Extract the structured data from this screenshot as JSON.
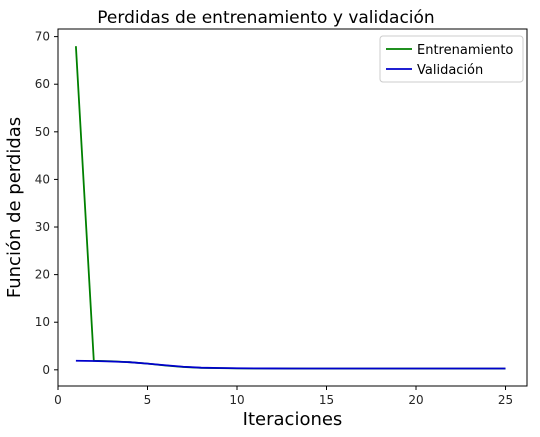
{
  "chart_data": {
    "type": "line",
    "title": "Perdidas de entrenamiento y validación",
    "xlabel": "Iteraciones",
    "ylabel": "Función de perdidas",
    "xlim": [
      0,
      26.2
    ],
    "ylim": [
      -3.4,
      71.6
    ],
    "xticks": [
      0,
      5,
      10,
      15,
      20,
      25
    ],
    "yticks": [
      0,
      10,
      20,
      30,
      40,
      50,
      60,
      70
    ],
    "grid": false,
    "legend_position": "top-right",
    "series": [
      {
        "name": "Entrenamiento",
        "color": "#008000",
        "x": [
          1,
          2,
          3,
          4,
          5,
          6,
          7,
          8,
          9,
          10,
          11,
          12,
          13,
          14,
          15,
          16,
          17,
          18,
          19,
          20,
          21,
          22,
          23,
          24,
          25
        ],
        "y": [
          68.0,
          1.9,
          1.8,
          1.6,
          1.3,
          0.9,
          0.6,
          0.4,
          0.35,
          0.3,
          0.28,
          0.27,
          0.26,
          0.25,
          0.25,
          0.25,
          0.25,
          0.25,
          0.25,
          0.25,
          0.25,
          0.25,
          0.25,
          0.25,
          0.25
        ]
      },
      {
        "name": "Validación",
        "color": "#0000cc",
        "x": [
          1,
          2,
          3,
          4,
          5,
          6,
          7,
          8,
          9,
          10,
          11,
          12,
          13,
          14,
          15,
          16,
          17,
          18,
          19,
          20,
          21,
          22,
          23,
          24,
          25
        ],
        "y": [
          1.9,
          1.85,
          1.75,
          1.6,
          1.3,
          0.95,
          0.65,
          0.45,
          0.38,
          0.33,
          0.3,
          0.29,
          0.28,
          0.28,
          0.27,
          0.27,
          0.27,
          0.27,
          0.27,
          0.27,
          0.27,
          0.27,
          0.27,
          0.27,
          0.27
        ]
      }
    ]
  }
}
